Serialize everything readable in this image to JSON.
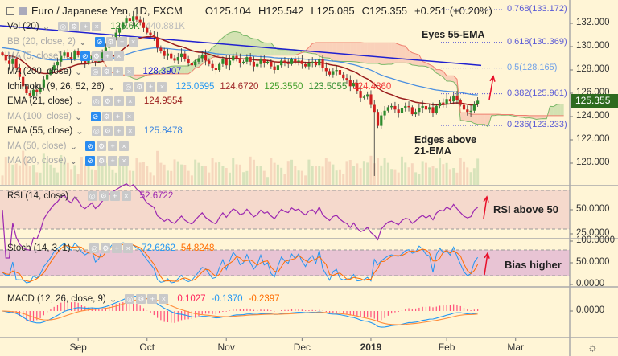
{
  "header": {
    "symbol": "Euro / Japanese Yen, 1D, FXCM",
    "open": "O125.104",
    "high": "H125.542",
    "low": "L125.085",
    "close": "C125.355",
    "change": "+0.251 (+0.20%)"
  },
  "legend": [
    {
      "name": "Vol (20)",
      "hidden": false,
      "values": [
        {
          "v": "126.6K",
          "color": "#2e8b2e"
        },
        {
          "v": "440.881K",
          "color": "#bbbbbb"
        }
      ]
    },
    {
      "name": "BB (20, close, 2)",
      "hidden": true,
      "values": []
    },
    {
      "name": "MA (5, close)",
      "hidden": true,
      "values": []
    },
    {
      "name": "MA (200, close)",
      "hidden": false,
      "values": [
        {
          "v": "128.3907",
          "color": "#2020d0"
        }
      ]
    },
    {
      "name": "Ichimoku (9, 26, 52, 26)",
      "hidden": false,
      "values": [
        {
          "v": "125.0595",
          "color": "#2196f3"
        },
        {
          "v": "124.6720",
          "color": "#a0282a"
        },
        {
          "v": "125.3550",
          "color": "#44a02c"
        },
        {
          "v": "123.5055",
          "color": "#2e8b2e"
        },
        {
          "v": "124.4860",
          "color": "#f23c3c"
        }
      ]
    },
    {
      "name": "EMA (21, close)",
      "hidden": false,
      "values": [
        {
          "v": "124.9554",
          "color": "#9a1c1c"
        }
      ]
    },
    {
      "name": "MA (100, close)",
      "hidden": true,
      "values": []
    },
    {
      "name": "EMA (55, close)",
      "hidden": false,
      "values": [
        {
          "v": "125.8478",
          "color": "#3d86e0"
        }
      ]
    },
    {
      "name": "MA (50, close)",
      "hidden": true,
      "values": []
    },
    {
      "name": "MA (20, close)",
      "hidden": true,
      "values": []
    }
  ],
  "panels": {
    "rsi": {
      "name": "RSI (14, close)",
      "values": [
        {
          "v": "52.6722",
          "color": "#9c27b0"
        }
      ],
      "ticks": [
        "50.0000",
        "25.0000"
      ],
      "note": "RSI above 50"
    },
    "stoch": {
      "name": "Stoch (14, 3, 1)",
      "values": [
        {
          "v": "72.6262",
          "color": "#2196f3"
        },
        {
          "v": "54.8248",
          "color": "#ff6d00"
        }
      ],
      "ticks": [
        "100.0000",
        "50.0000",
        "0.0000"
      ],
      "note": "Bias higher"
    },
    "macd": {
      "name": "MACD (12, 26, close, 9)",
      "values": [
        {
          "v": "0.1027",
          "color": "#ff1f5a"
        },
        {
          "v": "-0.1370",
          "color": "#2196f3"
        },
        {
          "v": "-0.2397",
          "color": "#ff6d00"
        }
      ],
      "ticks": [
        "0.0000"
      ]
    }
  },
  "annotations": {
    "eyes": "Eyes 55-EMA",
    "edges": [
      "Edges above",
      "21-EMA"
    ]
  },
  "price_label": "125.355",
  "colors": {
    "bg": "#fff5d6",
    "up": "#2e8b2e",
    "down": "#d01f1f",
    "ema21": "#9a1c1c",
    "ema55": "#4a8fe0",
    "ma200": "#2020d0",
    "fib": "#5b5bd6",
    "arrow": "#e8102a"
  },
  "chart_data": {
    "type": "candlestick",
    "title": "Euro / Japanese Yen, 1D, FXCM",
    "ylim": [
      118.5,
      133.5
    ],
    "yticks": [
      "132.000",
      "130.000",
      "128.000",
      "126.000",
      "124.000",
      "122.000",
      "120.000"
    ],
    "ytick_values": [
      132,
      130,
      128,
      126,
      124,
      122,
      120
    ],
    "xticks": [
      "Sep",
      "Oct",
      "Nov",
      "Dec",
      "2019",
      "Feb",
      "Mar"
    ],
    "xtick_bar_index": [
      22,
      42,
      65,
      87,
      107,
      129,
      149
    ],
    "close": [
      129.3,
      128.8,
      128.5,
      128.9,
      128.2,
      127.4,
      126.6,
      126.0,
      125.8,
      126.3,
      126.1,
      126.5,
      127.2,
      127.6,
      128.0,
      128.4,
      128.7,
      129.2,
      129.5,
      129.1,
      128.9,
      129.6,
      129.3,
      128.8,
      128.6,
      128.9,
      129.2,
      128.7,
      129.0,
      129.5,
      129.9,
      130.4,
      130.8,
      131.2,
      131.6,
      132.0,
      132.4,
      132.2,
      132.6,
      132.3,
      132.1,
      131.6,
      131.2,
      131.0,
      130.8,
      129.9,
      129.6,
      129.2,
      129.4,
      129.0,
      128.8,
      129.1,
      129.4,
      128.9,
      128.6,
      128.4,
      128.7,
      129.0,
      129.3,
      128.8,
      128.5,
      128.2,
      128.0,
      128.5,
      128.9,
      128.4,
      128.8,
      129.2,
      129.0,
      128.6,
      128.7,
      129.1,
      128.7,
      128.3,
      128.5,
      128.9,
      128.6,
      128.7,
      128.3,
      128.0,
      128.4,
      128.8,
      128.6,
      128.5,
      128.9,
      128.7,
      128.8,
      128.5,
      128.3,
      128.6,
      128.7,
      128.4,
      128.9,
      128.2,
      127.9,
      127.6,
      127.9,
      128.0,
      127.6,
      127.3,
      127.1,
      126.6,
      126.9,
      126.2,
      125.6,
      125.7,
      125.9,
      125.0,
      124.4,
      123.2,
      124.1,
      124.5,
      124.8,
      124.9,
      124.6,
      124.3,
      124.7,
      124.9,
      124.8,
      124.2,
      124.4,
      124.7,
      124.9,
      124.6,
      124.8,
      124.3,
      124.9,
      125.2,
      125.1,
      125.5,
      125.3,
      125.8,
      125.4,
      125.0,
      124.6,
      124.4,
      124.5,
      125.1,
      125.355
    ],
    "first_open": 129.5,
    "flash_crash": {
      "index": 108,
      "low": 118.9
    },
    "ma200_range": [
      131.8,
      128.3907
    ],
    "fib_levels": [
      {
        "label": "0.768(133.172)",
        "price": 133.172
      },
      {
        "label": "0.618(130.369)",
        "price": 130.369
      },
      {
        "label": "0.5(128.165)",
        "price": 128.165
      },
      {
        "label": "0.382(125.961)",
        "price": 125.961
      },
      {
        "label": "0.236(123.233)",
        "price": 123.233
      }
    ]
  }
}
